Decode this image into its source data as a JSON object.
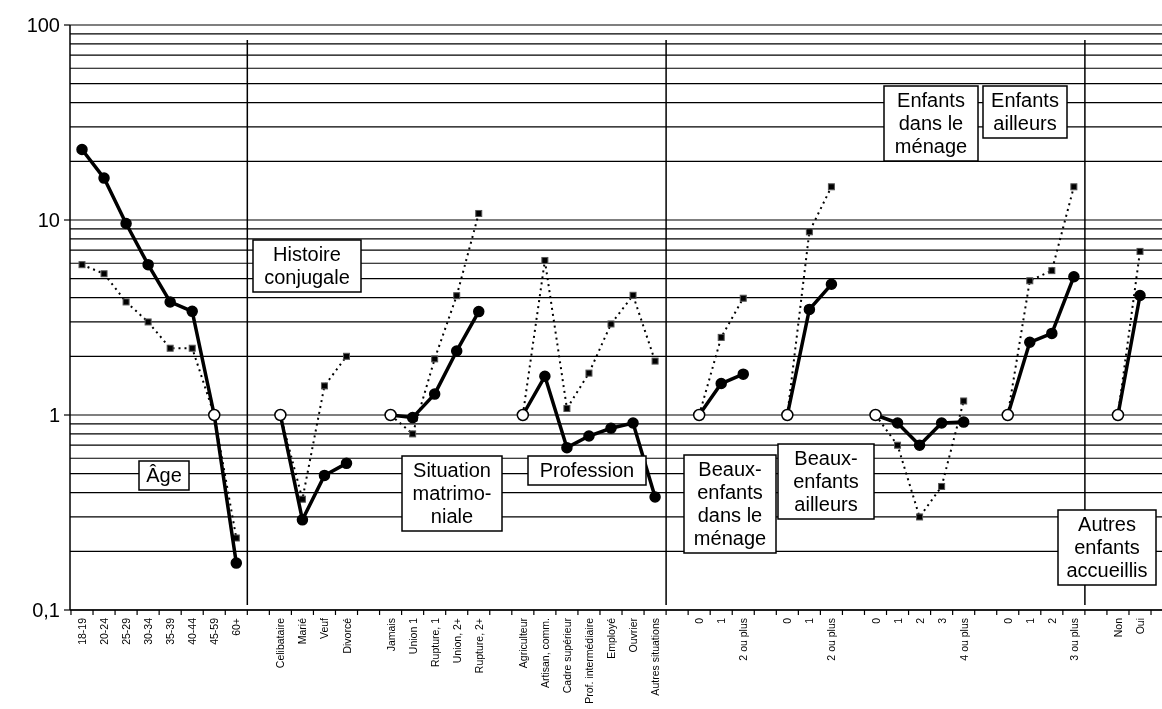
{
  "chart_data": {
    "type": "line",
    "log": "y",
    "grid": "y",
    "categories": [
      "18-19",
      "20-24",
      "25-29",
      "30-34",
      "35-39",
      "40-44",
      "45-59",
      "60+",
      null,
      "Celibataire",
      "Marié",
      "Veuf",
      "Divorcé",
      null,
      "Jamais",
      "Union 1",
      "Rupture, 1",
      "Union, 2+",
      "Rupture, 2+",
      null,
      "Agriculteur",
      "Artisan, comm.",
      "Cadre supérieur",
      "Prof. intermédiaire",
      "Employé",
      "Ouvrier",
      "Autres situations",
      null,
      "0",
      "1",
      "2 ou plus",
      null,
      "0",
      "1",
      "2 ou plus",
      null,
      "0",
      "1",
      "2",
      "3",
      "4 ou plus",
      null,
      "0",
      "1",
      "2",
      "3 ou plus",
      null,
      "Non",
      "Oui"
    ],
    "series": [
      {
        "color": "#000000",
        "line_style": "solid",
        "marker": "circle",
        "values": [
          23,
          16.4,
          9.6,
          5.9,
          3.8,
          3.4,
          1,
          0.174,
          null,
          1,
          0.29,
          0.49,
          0.565,
          null,
          1,
          0.97,
          1.28,
          2.13,
          3.39,
          null,
          1,
          1.58,
          0.68,
          0.78,
          0.855,
          0.91,
          0.38,
          null,
          1,
          1.45,
          1.62,
          null,
          1,
          3.48,
          4.68,
          null,
          1,
          0.91,
          0.7,
          0.91,
          0.92,
          null,
          1,
          2.36,
          2.62,
          5.12,
          null,
          1,
          4.1
        ],
        "colors": [
          "#000000",
          "#000000",
          "#000000",
          "#000000",
          "#000000",
          "#000000",
          "#ffffff",
          "#000000",
          null,
          "#ffffff",
          "#000000",
          "#000000",
          "#000000",
          null,
          "#ffffff",
          "#000000",
          "#000000",
          "#000000",
          "#000000",
          null,
          "#ffffff",
          "#000000",
          "#000000",
          "#000000",
          "#000000",
          "#000000",
          "#000000",
          null,
          "#ffffff",
          "#000000",
          "#000000",
          null,
          "#ffffff",
          "#000000",
          "#000000",
          null,
          "#ffffff",
          "#000000",
          "#000000",
          "#000000",
          "#000000",
          null,
          "#ffffff",
          "#000000",
          "#000000",
          "#000000",
          null,
          "#ffffff",
          "#000000"
        ]
      },
      {
        "color": "#000000",
        "line_style": "dotted",
        "marker": "square",
        "values": [
          5.9,
          5.3,
          3.8,
          3.0,
          2.2,
          2.2,
          1,
          0.234,
          null,
          1,
          0.37,
          1.41,
          2.0,
          null,
          1,
          0.8,
          1.94,
          4.09,
          10.8,
          null,
          1,
          6.2,
          1.08,
          1.64,
          2.93,
          4.11,
          1.89,
          null,
          1,
          2.5,
          3.97,
          null,
          1,
          8.7,
          14.8,
          null,
          1,
          0.7,
          0.3,
          0.43,
          1.18,
          null,
          1,
          4.88,
          5.5,
          14.8,
          null,
          1,
          6.9
        ]
      }
    ],
    "ylim": [
      0.1,
      100
    ],
    "yticks": [
      {
        "value": 0.1,
        "label": "0,1"
      },
      {
        "value": 0.2,
        "label": null
      },
      {
        "value": 0.3,
        "label": null
      },
      {
        "value": 0.4,
        "label": null
      },
      {
        "value": 0.5,
        "label": null
      },
      {
        "value": 0.6,
        "label": null
      },
      {
        "value": 0.7,
        "label": null
      },
      {
        "value": 0.8,
        "label": null
      },
      {
        "value": 0.9,
        "label": null
      },
      1,
      {
        "value": 2,
        "label": null
      },
      {
        "value": 3,
        "label": null
      },
      {
        "value": 4,
        "label": null
      },
      {
        "value": 5,
        "label": null
      },
      {
        "value": 6,
        "label": null
      },
      {
        "value": 7,
        "label": null
      },
      {
        "value": 8,
        "label": null
      },
      {
        "value": 9,
        "label": null
      },
      10,
      {
        "value": 20,
        "label": null
      },
      {
        "value": 30,
        "label": null
      },
      {
        "value": 40,
        "label": null
      },
      {
        "value": 50,
        "label": null
      },
      {
        "value": 60,
        "label": null
      },
      {
        "value": 70,
        "label": null
      },
      {
        "value": 80,
        "label": null
      },
      {
        "value": 90,
        "label": null
      },
      100
    ],
    "annotations": [
      "Âge",
      "Histoire\nconjugale",
      "Situation\nmatrimo-\nniale",
      "Profession",
      "Beaux-\nenfants\ndans le\nménage",
      "Beaux-\nenfants\nailleurs",
      "Enfants\ndans le\nménage",
      "Enfants\nailleurs",
      "Autres\nenfants\naccueillis"
    ]
  }
}
